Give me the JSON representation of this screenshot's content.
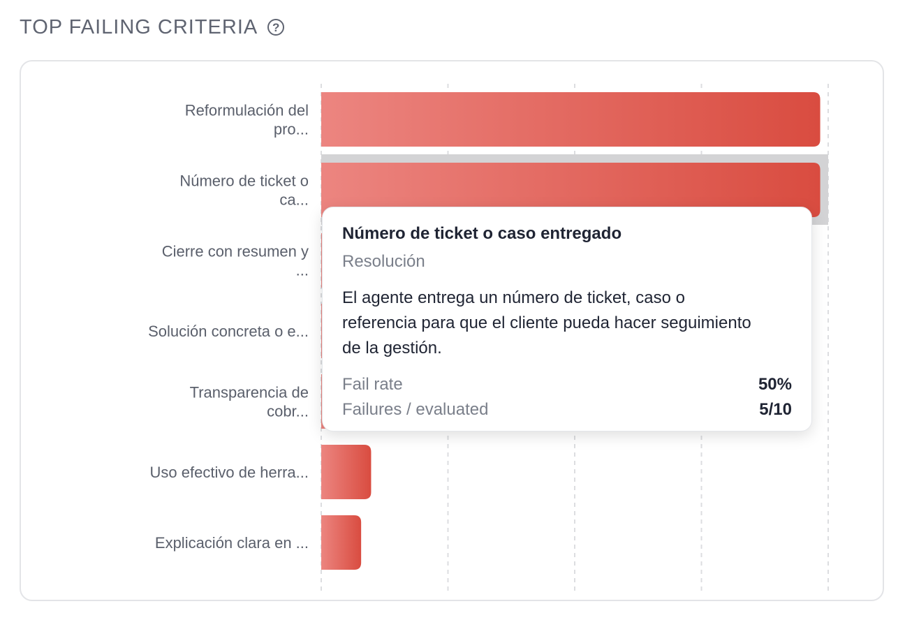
{
  "section": {
    "title": "TOP FAILING CRITERIA",
    "help_icon": "question-circle-icon"
  },
  "chart_data": {
    "type": "bar",
    "orientation": "horizontal",
    "categories": [
      [
        "Reformulación del",
        "pro..."
      ],
      [
        "Número de ticket o",
        "ca..."
      ],
      [
        "Cierre con resumen y",
        "..."
      ],
      [
        "Solución concreta o e..."
      ],
      [
        "Transparencia de",
        "cobr..."
      ],
      [
        "Uso efectivo de herra..."
      ],
      [
        "Explicación clara en ..."
      ]
    ],
    "values": [
      50,
      50,
      25,
      17,
      8,
      5,
      4
    ],
    "unit": "%",
    "xlim": [
      0,
      50.8
    ],
    "grid": true,
    "highlighted_index": 1,
    "colors": {
      "bar_start": "#ec8580",
      "bar_end": "#d94c40",
      "highlight_band": "#d3d3d5",
      "grid": "#dcdde0"
    }
  },
  "tooltip": {
    "title": "Número de ticket o caso entregado",
    "category": "Resolución",
    "description": "El agente entrega un número de ticket, caso o referencia para que el cliente pueda hacer seguimiento de la gestión.",
    "fail_rate_label": "Fail rate",
    "fail_rate_value": "50%",
    "failures_label": "Failures / evaluated",
    "failures_value": "5/10"
  }
}
